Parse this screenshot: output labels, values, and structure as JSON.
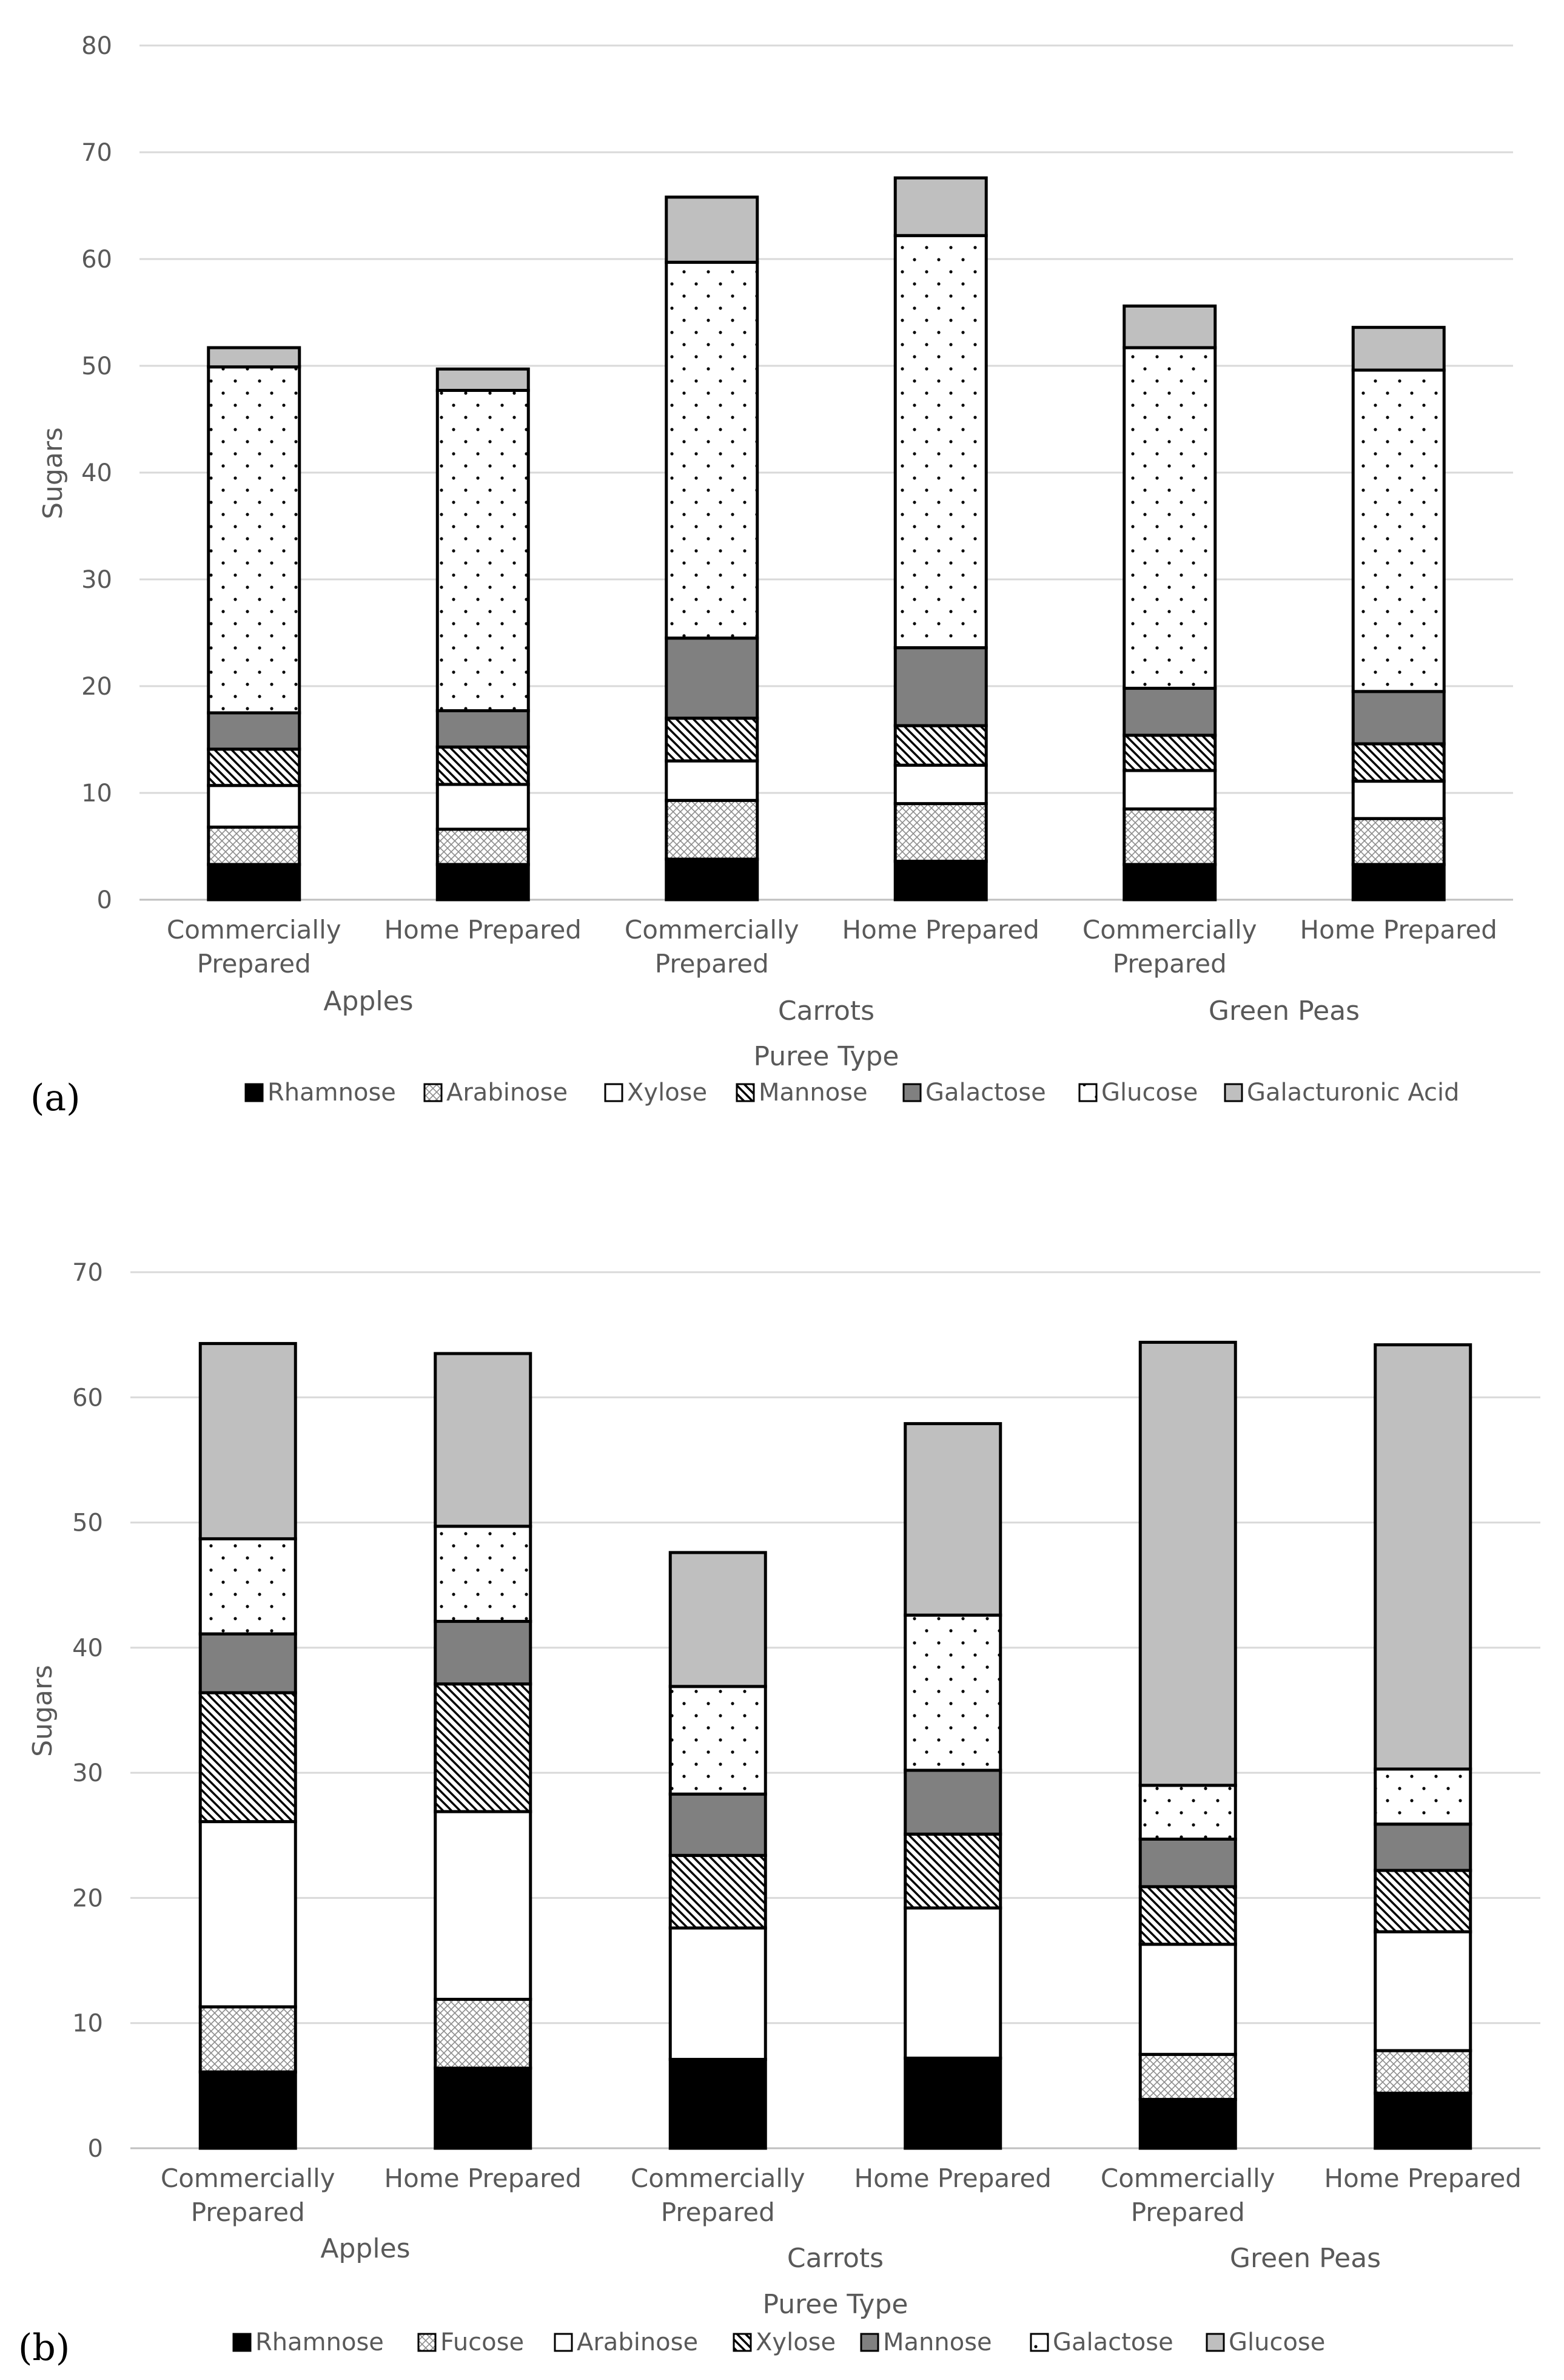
{
  "chart_data": [
    {
      "panel_label": "(a)",
      "type": "bar",
      "stacked": true,
      "xlabel": "Puree Type",
      "ylabel": "Sugars",
      "ylim": [
        0,
        80
      ],
      "yticks": [
        "0",
        "10",
        "20",
        "30",
        "40",
        "50",
        "60",
        "70",
        "80"
      ],
      "grid": true,
      "legend_position": "bottom",
      "groups": [
        {
          "name": "Apples",
          "categories": [
            "Commercially Prepared",
            "Home Prepared"
          ]
        },
        {
          "name": "Carrots",
          "categories": [
            "Commercially Prepared",
            "Home Prepared"
          ]
        },
        {
          "name": "Green Peas",
          "categories": [
            "Commercially Prepared",
            "Home Prepared"
          ]
        }
      ],
      "category_labels": [
        [
          "Commercially",
          "Prepared"
        ],
        [
          "Home Prepared"
        ],
        [
          "Commercially",
          "Prepared"
        ],
        [
          "Home Prepared"
        ],
        [
          "Commercially",
          "Prepared"
        ],
        [
          "Home Prepared"
        ]
      ],
      "series": [
        {
          "name": "Rhamnose",
          "fill": "black",
          "values": [
            3.3,
            3.3,
            3.8,
            3.6,
            3.3,
            3.3
          ]
        },
        {
          "name": "Arabinose",
          "fill": "crosshatch",
          "values": [
            3.5,
            3.3,
            5.5,
            5.4,
            5.2,
            4.3
          ]
        },
        {
          "name": "Xylose",
          "fill": "white",
          "values": [
            3.9,
            4.2,
            3.7,
            3.6,
            3.6,
            3.5
          ]
        },
        {
          "name": "Mannose",
          "fill": "diagonal",
          "values": [
            3.4,
            3.5,
            4.0,
            3.7,
            3.3,
            3.5
          ]
        },
        {
          "name": "Galactose",
          "fill": "darkgray",
          "values": [
            3.4,
            3.4,
            7.5,
            7.3,
            4.4,
            4.9
          ]
        },
        {
          "name": "Glucose",
          "fill": "dots",
          "values": [
            32.4,
            30.0,
            35.2,
            38.6,
            31.9,
            30.1
          ]
        },
        {
          "name": "Galacturonic Acid",
          "fill": "lightgray",
          "values": [
            1.8,
            2.0,
            6.1,
            5.4,
            3.9,
            4.0
          ]
        }
      ]
    },
    {
      "panel_label": "(b)",
      "type": "bar",
      "stacked": true,
      "xlabel": "Puree Type",
      "ylabel": "Sugars",
      "ylim": [
        0,
        70
      ],
      "yticks": [
        "0",
        "10",
        "20",
        "30",
        "40",
        "50",
        "60",
        "70"
      ],
      "grid": true,
      "legend_position": "bottom",
      "groups": [
        {
          "name": "Apples",
          "categories": [
            "Commercially Prepared",
            "Home Prepared"
          ]
        },
        {
          "name": "Carrots",
          "categories": [
            "Commercially Prepared",
            "Home Prepared"
          ]
        },
        {
          "name": "Green Peas",
          "categories": [
            "Commercially Prepared",
            "Home Prepared"
          ]
        }
      ],
      "category_labels": [
        [
          "Commercially",
          "Prepared"
        ],
        [
          "Home Prepared"
        ],
        [
          "Commercially",
          "Prepared"
        ],
        [
          "Home Prepared"
        ],
        [
          "Commercially",
          "Prepared"
        ],
        [
          "Home Prepared"
        ]
      ],
      "series": [
        {
          "name": "Rhamnose",
          "fill": "black",
          "values": [
            6.1,
            6.4,
            7.1,
            7.2,
            3.9,
            4.4
          ]
        },
        {
          "name": "Fucose",
          "fill": "crosshatch",
          "values": [
            5.2,
            5.5,
            0.0,
            0.0,
            3.6,
            3.4
          ]
        },
        {
          "name": "Arabinose",
          "fill": "white",
          "values": [
            14.8,
            15.0,
            10.5,
            12.0,
            8.8,
            9.5
          ]
        },
        {
          "name": "Xylose",
          "fill": "diagonal",
          "values": [
            10.3,
            10.2,
            5.8,
            5.9,
            4.6,
            4.9
          ]
        },
        {
          "name": "Mannose",
          "fill": "darkgray",
          "values": [
            4.7,
            5.0,
            4.9,
            5.1,
            3.8,
            3.7
          ]
        },
        {
          "name": "Galactose",
          "fill": "dots",
          "values": [
            7.6,
            7.6,
            8.6,
            12.4,
            4.3,
            4.4
          ]
        },
        {
          "name": "Glucose",
          "fill": "lightgray",
          "values": [
            15.6,
            13.8,
            10.7,
            15.3,
            35.4,
            33.9
          ]
        }
      ]
    }
  ]
}
